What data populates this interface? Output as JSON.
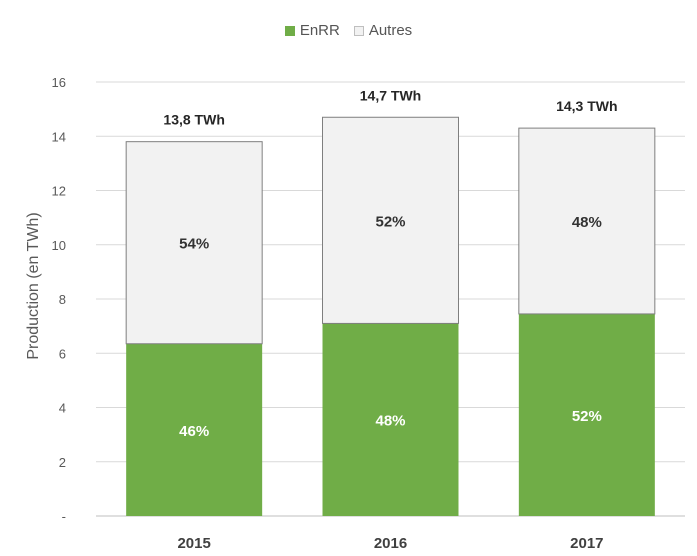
{
  "chart_data": {
    "type": "bar",
    "stacked": true,
    "categories": [
      "2015",
      "2016",
      "2017"
    ],
    "series": [
      {
        "name": "EnRR",
        "color": "#70ad47",
        "values": [
          6.35,
          7.1,
          7.45
        ],
        "labels": [
          "46%",
          "48%",
          "52%"
        ]
      },
      {
        "name": "Autres",
        "color": "#f2f2f2",
        "values": [
          7.45,
          7.6,
          6.85
        ],
        "labels": [
          "54%",
          "52%",
          "48%"
        ]
      }
    ],
    "totals": [
      "13,8 TWh",
      "14,7 TWh",
      "14,3 TWh"
    ],
    "ylabel": "Production (en TWh)",
    "ylim": [
      0,
      16
    ],
    "yticks": [
      0,
      2,
      4,
      6,
      8,
      10,
      12,
      14,
      16
    ],
    "ytick_labels": [
      "-",
      "2",
      "4",
      "6",
      "8",
      "10",
      "12",
      "14",
      "16"
    ],
    "grid": true,
    "legend_position": "top"
  }
}
